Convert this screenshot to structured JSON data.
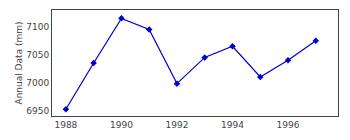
{
  "chart_data": {
    "type": "line",
    "x": [
      1988,
      1989,
      1990,
      1991,
      1992,
      1993,
      1994,
      1995,
      1996,
      1997
    ],
    "values": [
      6952,
      7035,
      7115,
      7095,
      6998,
      7045,
      7065,
      7010,
      7040,
      7075
    ],
    "color": "#0000cc",
    "marker": "diamond",
    "line_style": "solid",
    "ylabel": "Annual Data (mm)",
    "xlim": [
      1987.5,
      1997.8
    ],
    "ylim": [
      6940,
      7130
    ],
    "xticks": [
      1988,
      1990,
      1992,
      1994,
      1996
    ],
    "yticks": [
      6950,
      7000,
      7050,
      7100
    ],
    "grid": false
  }
}
